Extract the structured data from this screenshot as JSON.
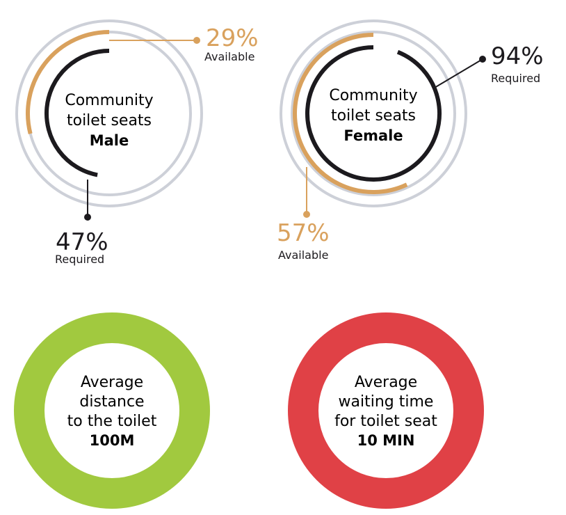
{
  "colors": {
    "track": "#cdd0d8",
    "available": "#d9a15d",
    "required": "#1c1a1e",
    "green_ring": "#a1c93f",
    "red_ring": "#e04146"
  },
  "male": {
    "title_line1": "Community",
    "title_line2": "toilet seats",
    "gender": "Male",
    "available_pct": "29%",
    "available_label": "Available",
    "required_pct": "47%",
    "required_label": "Required"
  },
  "female": {
    "title_line1": "Community",
    "title_line2": "toilet seats",
    "gender": "Female",
    "available_pct": "57%",
    "available_label": "Available",
    "required_pct": "94%",
    "required_label": "Required"
  },
  "distance": {
    "line1": "Average",
    "line2": "distance",
    "line3": "to the toilet",
    "value": "100M"
  },
  "waiting": {
    "line1": "Average",
    "line2": "waiting time",
    "line3": "for toilet seat",
    "value": "10 MIN"
  },
  "chart_data": [
    {
      "type": "radial-progress",
      "title": "Community toilet seats Male",
      "series": [
        {
          "name": "Available",
          "value": 29
        },
        {
          "name": "Required",
          "value": 47
        }
      ],
      "max": 100
    },
    {
      "type": "radial-progress",
      "title": "Community toilet seats Female",
      "series": [
        {
          "name": "Available",
          "value": 57
        },
        {
          "name": "Required",
          "value": 94
        }
      ],
      "max": 100
    }
  ]
}
